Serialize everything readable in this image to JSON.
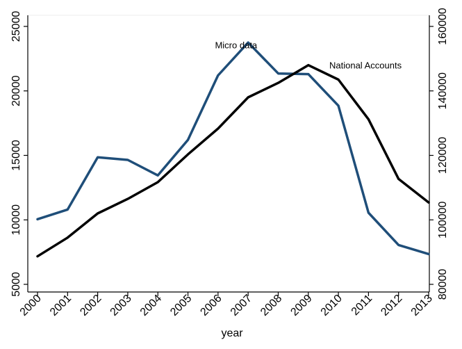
{
  "chart_data": {
    "type": "line",
    "xlabel": "year",
    "x": [
      2000,
      2001,
      2002,
      2003,
      2004,
      2005,
      2006,
      2007,
      2008,
      2009,
      2010,
      2011,
      2012,
      2013
    ],
    "x_ticks": [
      "2000",
      "2001",
      "2002",
      "2003",
      "2004",
      "2005",
      "2006",
      "2007",
      "2008",
      "2009",
      "2010",
      "2011",
      "2012",
      "2013"
    ],
    "y_left": {
      "range": [
        5000,
        25000
      ],
      "ticks": [
        5000,
        10000,
        15000,
        20000,
        25000
      ]
    },
    "y_right": {
      "range": [
        80000,
        160000
      ],
      "ticks": [
        80000,
        100000,
        120000,
        140000,
        160000
      ]
    },
    "series": [
      {
        "name": "Micro data",
        "axis": "left",
        "color": "#1f4e79",
        "values": [
          10050,
          10800,
          14850,
          14650,
          13450,
          16200,
          21200,
          23750,
          21350,
          21300,
          18850,
          10550,
          8050,
          7350
        ]
      },
      {
        "name": "National Accounts",
        "axis": "right",
        "color": "#000000",
        "values": [
          88700,
          94500,
          102000,
          106500,
          111700,
          120300,
          128300,
          138000,
          142500,
          148000,
          143500,
          131200,
          112700,
          105400
        ]
      }
    ],
    "annotations": [
      {
        "text": "Micro data",
        "series": "Micro data",
        "x": 2006.6,
        "y": 23300
      },
      {
        "text": "National Accounts",
        "series": "National Accounts",
        "x": 2010.9,
        "y": 21750
      }
    ],
    "grid": false,
    "legend": "none"
  }
}
